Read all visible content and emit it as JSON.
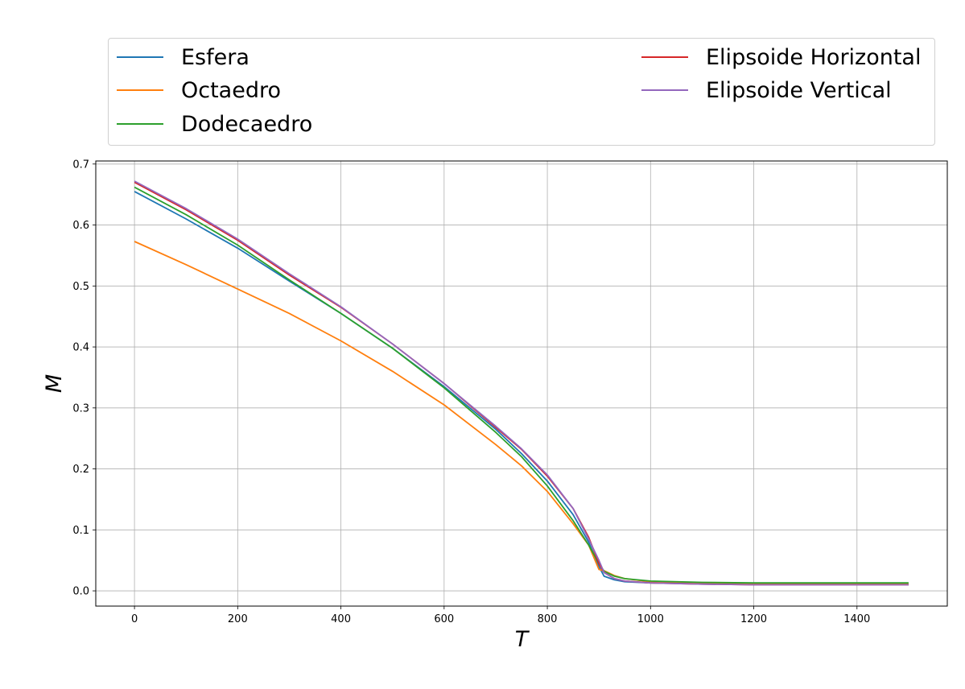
{
  "chart_data": {
    "type": "line",
    "title": "",
    "xlabel": "T",
    "ylabel": "M",
    "xlim": [
      -75,
      1575
    ],
    "ylim": [
      -0.025,
      0.705
    ],
    "xticks": [
      0,
      200,
      400,
      600,
      800,
      1000,
      1200,
      1400
    ],
    "yticks": [
      0.0,
      0.1,
      0.2,
      0.3,
      0.4,
      0.5,
      0.6,
      0.7
    ],
    "xtick_labels": [
      "0",
      "200",
      "400",
      "600",
      "800",
      "1000",
      "1200",
      "1400"
    ],
    "ytick_labels": [
      "0.0",
      "0.1",
      "0.2",
      "0.3",
      "0.4",
      "0.5",
      "0.6",
      "0.7"
    ],
    "grid": true,
    "legend_placement": "top",
    "series": [
      {
        "name": "Esfera",
        "color": "#1f77b4",
        "x": [
          0,
          100,
          200,
          300,
          400,
          500,
          600,
          700,
          750,
          800,
          850,
          880,
          900,
          910,
          930,
          950,
          1000,
          1100,
          1200,
          1300,
          1400,
          1500
        ],
        "y": [
          0.655,
          0.61,
          0.562,
          0.508,
          0.455,
          0.398,
          0.335,
          0.265,
          0.225,
          0.18,
          0.125,
          0.08,
          0.04,
          0.024,
          0.018,
          0.015,
          0.013,
          0.012,
          0.011,
          0.011,
          0.011,
          0.011
        ]
      },
      {
        "name": "Octaedro",
        "color": "#ff7f0e",
        "x": [
          0,
          100,
          200,
          300,
          400,
          500,
          600,
          700,
          750,
          800,
          850,
          880,
          890,
          900,
          910,
          930,
          950,
          1000,
          1100,
          1200,
          1300,
          1400,
          1500
        ],
        "y": [
          0.573,
          0.535,
          0.495,
          0.455,
          0.41,
          0.36,
          0.305,
          0.24,
          0.205,
          0.163,
          0.11,
          0.075,
          0.055,
          0.035,
          0.033,
          0.025,
          0.02,
          0.015,
          0.013,
          0.012,
          0.012,
          0.011,
          0.011
        ]
      },
      {
        "name": "Dodecaedro",
        "color": "#2ca02c",
        "x": [
          0,
          100,
          200,
          300,
          400,
          500,
          600,
          700,
          750,
          800,
          850,
          880,
          900,
          910,
          930,
          950,
          1000,
          1100,
          1200,
          1300,
          1400,
          1500
        ],
        "y": [
          0.662,
          0.617,
          0.567,
          0.51,
          0.455,
          0.398,
          0.333,
          0.26,
          0.22,
          0.172,
          0.115,
          0.075,
          0.045,
          0.032,
          0.024,
          0.02,
          0.016,
          0.014,
          0.013,
          0.013,
          0.013,
          0.013
        ]
      },
      {
        "name": "Elipsoide Horizontal",
        "color": "#d62728",
        "x": [
          0,
          100,
          200,
          300,
          400,
          500,
          600,
          700,
          750,
          800,
          850,
          880,
          900,
          910,
          930,
          950,
          1000,
          1100,
          1200,
          1300,
          1400,
          1500
        ],
        "y": [
          0.67,
          0.625,
          0.575,
          0.518,
          0.465,
          0.405,
          0.34,
          0.268,
          0.232,
          0.188,
          0.135,
          0.088,
          0.045,
          0.03,
          0.02,
          0.016,
          0.013,
          0.011,
          0.01,
          0.01,
          0.01,
          0.01
        ]
      },
      {
        "name": "Elipsoide Vertical",
        "color": "#9467bd",
        "x": [
          0,
          100,
          200,
          300,
          400,
          500,
          600,
          700,
          750,
          800,
          850,
          880,
          900,
          910,
          930,
          950,
          1000,
          1100,
          1200,
          1300,
          1400,
          1500
        ],
        "y": [
          0.672,
          0.627,
          0.577,
          0.52,
          0.466,
          0.405,
          0.34,
          0.27,
          0.233,
          0.19,
          0.135,
          0.085,
          0.05,
          0.03,
          0.02,
          0.016,
          0.013,
          0.011,
          0.01,
          0.01,
          0.01,
          0.01
        ]
      }
    ]
  }
}
